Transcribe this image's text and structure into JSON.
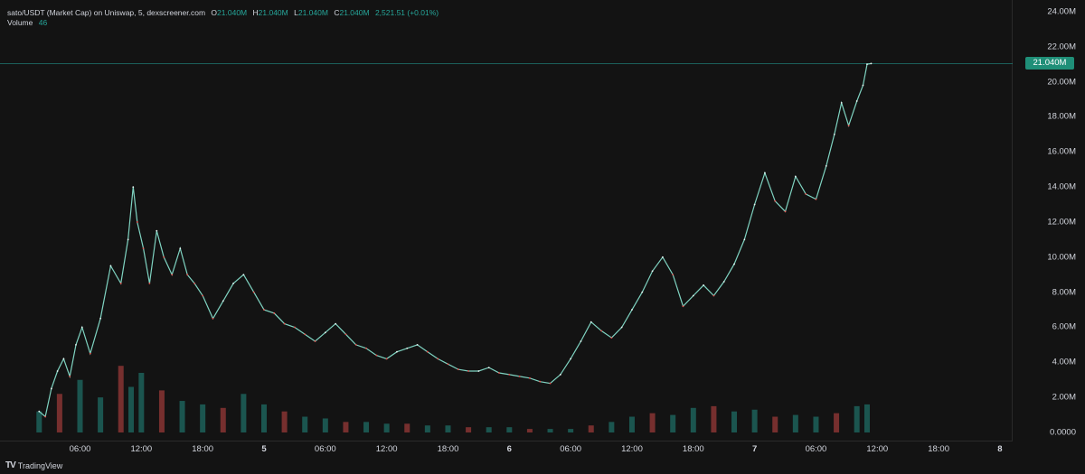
{
  "legend": {
    "symbol": "sato/USDT (Market Cap) on Uniswap, 5, dexscreener.com",
    "o_label": "O",
    "o_value": "21.040M",
    "h_label": "H",
    "h_value": "21.040M",
    "l_label": "L",
    "l_value": "21.040M",
    "c_label": "C",
    "c_value": "21.040M",
    "change": "2,521.51 (+0.01%)",
    "volume_label": "Volume",
    "volume_value": "46"
  },
  "price_badge": "21.040M",
  "branding": "TradingView",
  "colors": {
    "up": "#26a69a",
    "down": "#ef5350",
    "background": "#131313",
    "badge": "#1f8f78"
  },
  "chart_data": {
    "type": "line",
    "title": "sato/USDT (Market Cap) on Uniswap, 5, dexscreener.com",
    "last_value": 21.04,
    "ylim": [
      0,
      24
    ],
    "y_ticks": [
      "0.0000",
      "2.00M",
      "4.00M",
      "6.00M",
      "8.00M",
      "10.00M",
      "12.00M",
      "14.00M",
      "16.00M",
      "18.00M",
      "20.00M",
      "22.00M",
      "24.00M"
    ],
    "y_tick_values": [
      0,
      2,
      4,
      6,
      8,
      10,
      12,
      14,
      16,
      18,
      20,
      22,
      24
    ],
    "x_ticks": [
      "06:00",
      "12:00",
      "18:00",
      "5",
      "06:00",
      "12:00",
      "18:00",
      "6",
      "06:00",
      "12:00",
      "18:00",
      "7",
      "06:00",
      "12:00",
      "18:00",
      "8"
    ],
    "x_tick_hours": [
      6,
      12,
      18,
      24,
      30,
      36,
      42,
      48,
      54,
      60,
      66,
      72,
      78,
      84,
      90,
      96
    ],
    "x_tick_bold": [
      "5",
      "6",
      "7",
      "8"
    ],
    "series": [
      {
        "type": "market_cap",
        "unit": "M",
        "x": [
          2.0,
          2.6,
          3.2,
          3.8,
          4.4,
          5.0,
          5.6,
          6.2,
          7.0,
          8.0,
          9.0,
          10.0,
          10.7,
          11.2,
          11.6,
          12.2,
          12.8,
          13.5,
          14.2,
          15.0,
          15.8,
          16.5,
          17.2,
          18.0,
          19.0,
          20.0,
          21.0,
          22.0,
          23.0,
          24.0,
          25.0,
          26.0,
          27.0,
          28.0,
          29.0,
          30.0,
          31.0,
          32.0,
          33.0,
          34.0,
          35.0,
          36.0,
          37.0,
          38.0,
          39.0,
          40.0,
          41.0,
          42.0,
          43.0,
          44.0,
          45.0,
          46.0,
          47.0,
          48.0,
          49.0,
          50.0,
          51.0,
          52.0,
          53.0,
          54.0,
          55.0,
          56.0,
          57.0,
          58.0,
          59.0,
          60.0,
          61.0,
          62.0,
          63.0,
          64.0,
          65.0,
          66.0,
          67.0,
          68.0,
          69.0,
          70.0,
          71.0,
          72.0,
          73.0,
          74.0,
          75.0,
          76.0,
          77.0,
          78.0,
          79.0,
          79.8,
          80.5,
          81.2,
          82.0,
          82.6,
          83.0,
          83.4
        ],
        "values": [
          1.2,
          0.9,
          2.5,
          3.5,
          4.2,
          3.2,
          5.0,
          6.0,
          4.5,
          6.5,
          9.5,
          8.5,
          11.0,
          14.0,
          12.0,
          10.5,
          8.5,
          11.5,
          10.0,
          9.0,
          10.5,
          9.0,
          8.5,
          7.8,
          6.5,
          7.5,
          8.5,
          9.0,
          8.0,
          7.0,
          6.8,
          6.2,
          6.0,
          5.6,
          5.2,
          5.7,
          6.2,
          5.6,
          5.0,
          4.8,
          4.4,
          4.2,
          4.6,
          4.8,
          5.0,
          4.6,
          4.2,
          3.9,
          3.6,
          3.5,
          3.5,
          3.7,
          3.4,
          3.3,
          3.2,
          3.1,
          2.9,
          2.8,
          3.3,
          4.2,
          5.2,
          6.3,
          5.8,
          5.4,
          6.0,
          7.0,
          8.0,
          9.2,
          10.0,
          9.0,
          7.2,
          7.8,
          8.4,
          7.8,
          8.6,
          9.6,
          11.0,
          13.0,
          14.8,
          13.2,
          12.6,
          14.6,
          13.6,
          13.3,
          15.2,
          17.0,
          18.8,
          17.5,
          18.9,
          19.8,
          21.0,
          21.04
        ]
      },
      {
        "type": "volume",
        "ylim": [
          0,
          24
        ],
        "x": [
          2,
          4,
          6,
          8,
          10,
          11,
          12,
          14,
          16,
          18,
          20,
          22,
          24,
          26,
          28,
          30,
          32,
          34,
          36,
          38,
          40,
          42,
          44,
          46,
          48,
          50,
          52,
          54,
          56,
          58,
          60,
          62,
          64,
          66,
          68,
          70,
          72,
          74,
          76,
          78,
          80,
          82,
          83
        ],
        "values": [
          1.2,
          2.2,
          3.0,
          2.0,
          3.8,
          2.6,
          3.4,
          2.4,
          1.8,
          1.6,
          1.4,
          2.2,
          1.6,
          1.2,
          0.9,
          0.8,
          0.6,
          0.6,
          0.5,
          0.5,
          0.4,
          0.4,
          0.3,
          0.3,
          0.3,
          0.2,
          0.2,
          0.2,
          0.4,
          0.6,
          0.9,
          1.1,
          1.0,
          1.4,
          1.5,
          1.2,
          1.3,
          0.9,
          1.0,
          0.9,
          1.1,
          1.5,
          1.6
        ]
      }
    ],
    "grid": false,
    "legend": "top-left"
  }
}
